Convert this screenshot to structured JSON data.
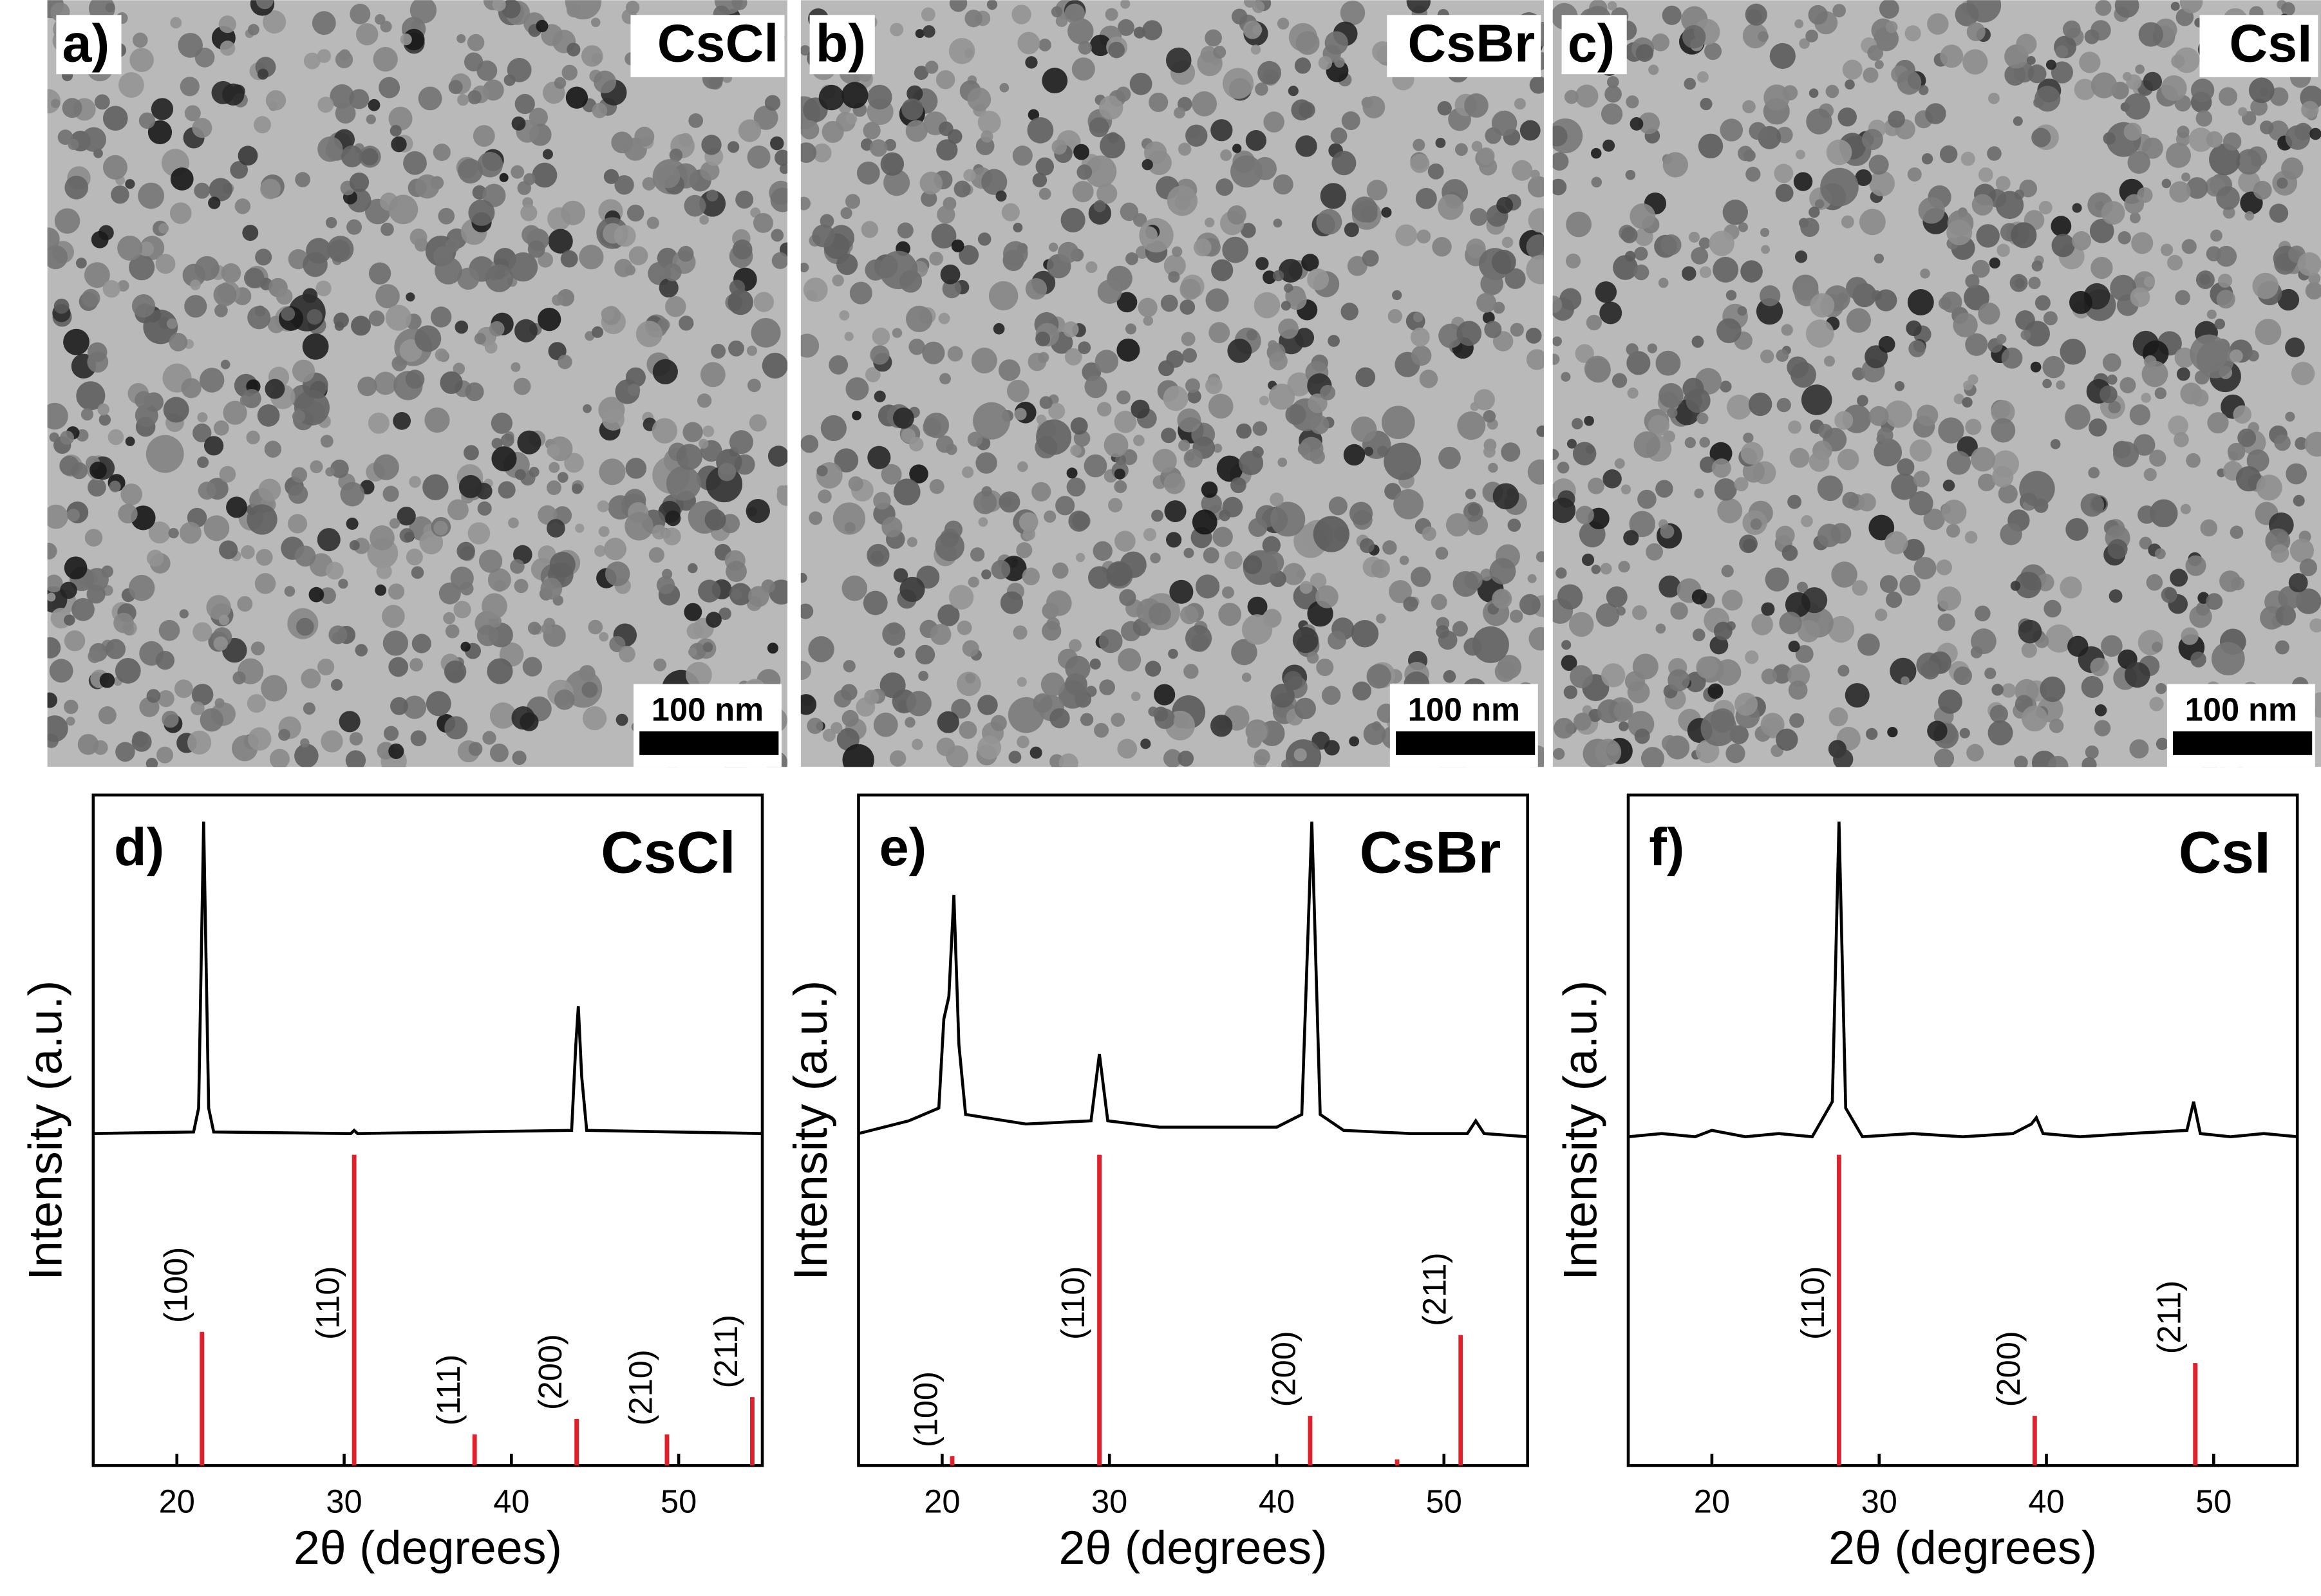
{
  "images": [
    {
      "label": "a)",
      "title": "CsCl",
      "scale_bar": "100 nm"
    },
    {
      "label": "b)",
      "title": "CsBr",
      "scale_bar": "100 nm"
    },
    {
      "label": "c)",
      "title": "CsI",
      "scale_bar": "100 nm"
    }
  ],
  "chart_data": [
    {
      "type": "xrd",
      "label": "d)",
      "title": "CsCl",
      "x_label": "2θ (degrees)",
      "y_label": "Intensity (a.u.)",
      "xlim": [
        15,
        55
      ],
      "xticks": [
        20,
        30,
        40,
        50
      ],
      "ylim": [
        0,
        100
      ],
      "pattern": {
        "color": "#000000",
        "x": [
          15,
          21,
          21.3,
          21.6,
          21.9,
          22.2,
          30.4,
          30.6,
          30.8,
          43.6,
          43.85,
          44,
          44.2,
          44.5,
          55
        ],
        "values": [
          2,
          2.5,
          10,
          100,
          10,
          2.5,
          2,
          3,
          2,
          3,
          30,
          42,
          20,
          3,
          2
        ]
      },
      "reference": {
        "color": "#e0202a",
        "x": [
          21.5,
          30.6,
          37.8,
          43.9,
          49.3,
          54.4
        ],
        "values": [
          43,
          100,
          10,
          15,
          10,
          22
        ],
        "labels": [
          "(100)",
          "(110)",
          "(111)",
          "(200)",
          "(210)",
          "(211)"
        ]
      }
    },
    {
      "type": "xrd",
      "label": "e)",
      "title": "CsBr",
      "x_label": "2θ (degrees)",
      "y_label": "Intensity (a.u.)",
      "xlim": [
        15,
        55
      ],
      "xticks": [
        20,
        30,
        40,
        50
      ],
      "ylim": [
        0,
        100
      ],
      "pattern": {
        "color": "#000000",
        "x": [
          15,
          18,
          19.8,
          20.1,
          20.4,
          20.7,
          21.0,
          21.4,
          25,
          28.9,
          29.4,
          29.9,
          33,
          40,
          41.5,
          42.1,
          42.6,
          44,
          48,
          51.4,
          51.9,
          52.4,
          55
        ],
        "values": [
          2,
          6,
          10,
          38,
          45,
          77,
          30,
          8,
          5,
          6,
          27,
          6,
          4,
          4,
          8,
          100,
          8,
          3,
          2,
          2,
          6,
          2,
          1
        ]
      },
      "reference": {
        "color": "#e0202a",
        "x": [
          20.6,
          29.4,
          42.0,
          47.2,
          51.0
        ],
        "values": [
          3,
          100,
          16,
          2,
          42
        ],
        "labels": [
          "(100)",
          "(110)",
          "(200)",
          null,
          "(211)"
        ]
      }
    },
    {
      "type": "xrd",
      "label": "f)",
      "title": "CsI",
      "x_label": "2θ (degrees)",
      "y_label": "Intensity (a.u.)",
      "xlim": [
        15,
        55
      ],
      "xticks": [
        20,
        30,
        40,
        50
      ],
      "ylim": [
        0,
        100
      ],
      "pattern": {
        "color": "#000000",
        "x": [
          15,
          17,
          19,
          20,
          22,
          24,
          26,
          27.2,
          27.6,
          28.0,
          29,
          32,
          35,
          38,
          39.1,
          39.4,
          39.8,
          42,
          45,
          48.4,
          48.8,
          49.2,
          51,
          53,
          55
        ],
        "values": [
          1,
          2,
          1,
          3,
          1,
          2,
          1,
          12,
          100,
          10,
          1,
          2,
          1,
          2,
          5,
          7,
          2,
          1,
          2,
          3,
          12,
          2,
          1,
          2,
          1
        ]
      },
      "reference": {
        "color": "#e0202a",
        "x": [
          27.6,
          39.3,
          48.9
        ],
        "values": [
          100,
          16,
          33
        ],
        "labels": [
          "(110)",
          "(200)",
          "(211)"
        ]
      }
    }
  ]
}
